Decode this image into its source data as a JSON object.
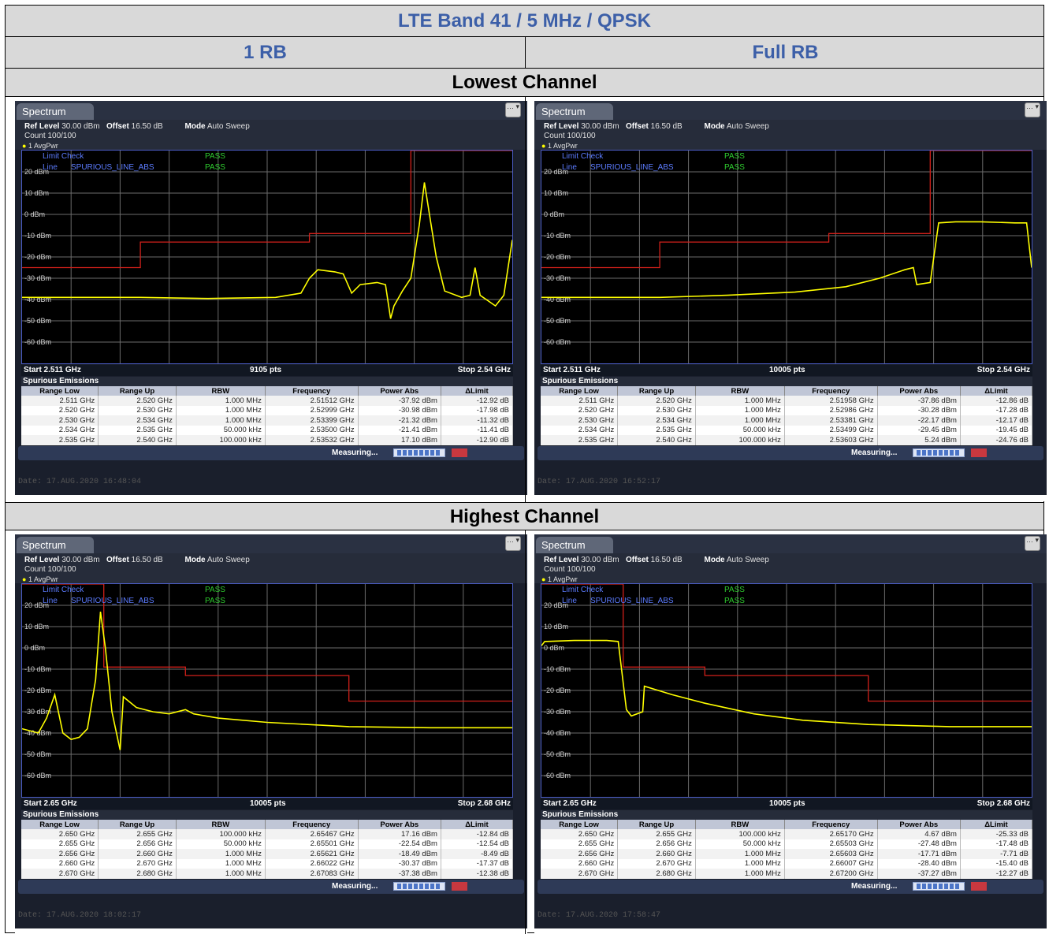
{
  "title": "LTE Band 41 / 5 MHz / QPSK",
  "col_headers": [
    "1 RB",
    "Full RB"
  ],
  "rows": [
    "Lowest Channel",
    "Highest Channel"
  ],
  "common": {
    "tab": "Spectrum",
    "ref_level_label": "Ref Level",
    "ref_level": "30.00 dBm",
    "offset_label": "Offset",
    "offset": "16.50 dB",
    "mode_label": "Mode",
    "mode": "Auto Sweep",
    "count": "Count 100/100",
    "trace": "1 AvgPwr",
    "limit_check": "Limit Check",
    "limit_line": "Line",
    "line_name": "SPURIOUS_LINE_ABS",
    "pass": "PASS",
    "spur_title": "Spurious Emissions",
    "measuring": "Measuring...",
    "table_headers": [
      "Range Low",
      "Range Up",
      "RBW",
      "Frequency",
      "Power Abs",
      "ΔLimit"
    ],
    "y_ticks": [
      "20 dBm",
      "10 dBm",
      "0 dBm",
      "-10 dBm",
      "-20 dBm",
      "-30 dBm",
      "-40 dBm",
      "-50 dBm",
      "-60 dBm"
    ]
  },
  "chart_data": [
    {
      "type": "line",
      "title": "Lowest Channel / 1 RB",
      "start": "Start 2.511 GHz",
      "stop": "Stop 2.54 GHz",
      "pts": "9105 pts",
      "date": "Date: 17.AUG.2020  16:48:04",
      "ylim": [
        -70,
        30
      ],
      "xlim": [
        2.511,
        2.54
      ],
      "limit_line": [
        [
          2.511,
          -25
        ],
        [
          2.518,
          -25
        ],
        [
          2.518,
          -13
        ],
        [
          2.528,
          -13
        ],
        [
          2.528,
          -9
        ],
        [
          2.534,
          -9
        ],
        [
          2.534,
          30
        ],
        [
          2.54,
          30
        ]
      ],
      "trace": [
        [
          2.511,
          -39
        ],
        [
          2.518,
          -39
        ],
        [
          2.522,
          -39.5
        ],
        [
          2.526,
          -39
        ],
        [
          2.5275,
          -37
        ],
        [
          2.528,
          -30
        ],
        [
          2.5285,
          -26
        ],
        [
          2.5295,
          -27
        ],
        [
          2.53,
          -28
        ],
        [
          2.5305,
          -37
        ],
        [
          2.531,
          -33
        ],
        [
          2.532,
          -32
        ],
        [
          2.5325,
          -33
        ],
        [
          2.5328,
          -49
        ],
        [
          2.533,
          -43
        ],
        [
          2.5335,
          -36
        ],
        [
          2.534,
          -30
        ],
        [
          2.5345,
          -5
        ],
        [
          2.5348,
          15
        ],
        [
          2.5351,
          0
        ],
        [
          2.5355,
          -20
        ],
        [
          2.536,
          -36
        ],
        [
          2.537,
          -39
        ],
        [
          2.5375,
          -38
        ],
        [
          2.5378,
          -25
        ],
        [
          2.5381,
          -38
        ],
        [
          2.539,
          -43
        ],
        [
          2.5395,
          -38
        ],
        [
          2.54,
          -12
        ]
      ],
      "rows": [
        [
          "2.511 GHz",
          "2.520 GHz",
          "1.000 MHz",
          "2.51512 GHz",
          "-37.92 dBm",
          "-12.92 dB"
        ],
        [
          "2.520 GHz",
          "2.530 GHz",
          "1.000 MHz",
          "2.52999 GHz",
          "-30.98 dBm",
          "-17.98 dB"
        ],
        [
          "2.530 GHz",
          "2.534 GHz",
          "1.000 MHz",
          "2.53399 GHz",
          "-21.32 dBm",
          "-11.32 dB"
        ],
        [
          "2.534 GHz",
          "2.535 GHz",
          "50.000 kHz",
          "2.53500 GHz",
          "-21.41 dBm",
          "-11.41 dB"
        ],
        [
          "2.535 GHz",
          "2.540 GHz",
          "100.000 kHz",
          "2.53532 GHz",
          "17.10 dBm",
          "-12.90 dB"
        ]
      ]
    },
    {
      "type": "line",
      "title": "Lowest Channel / Full RB",
      "start": "Start 2.511 GHz",
      "stop": "Stop 2.54 GHz",
      "pts": "10005 pts",
      "date": "Date: 17.AUG.2020  16:52:17",
      "ylim": [
        -70,
        30
      ],
      "xlim": [
        2.511,
        2.54
      ],
      "limit_line": [
        [
          2.511,
          -25
        ],
        [
          2.518,
          -25
        ],
        [
          2.518,
          -13
        ],
        [
          2.528,
          -13
        ],
        [
          2.528,
          -9
        ],
        [
          2.534,
          -9
        ],
        [
          2.534,
          30
        ],
        [
          2.54,
          30
        ]
      ],
      "trace": [
        [
          2.511,
          -39
        ],
        [
          2.518,
          -39
        ],
        [
          2.522,
          -38
        ],
        [
          2.526,
          -36.5
        ],
        [
          2.529,
          -34
        ],
        [
          2.531,
          -30
        ],
        [
          2.5325,
          -26
        ],
        [
          2.533,
          -25
        ],
        [
          2.5332,
          -33
        ],
        [
          2.534,
          -32
        ],
        [
          2.5345,
          -4
        ],
        [
          2.5355,
          -3.5
        ],
        [
          2.537,
          -3.5
        ],
        [
          2.539,
          -4
        ],
        [
          2.5397,
          -4
        ],
        [
          2.54,
          -25
        ]
      ],
      "rows": [
        [
          "2.511 GHz",
          "2.520 GHz",
          "1.000 MHz",
          "2.51958 GHz",
          "-37.86 dBm",
          "-12.86 dB"
        ],
        [
          "2.520 GHz",
          "2.530 GHz",
          "1.000 MHz",
          "2.52986 GHz",
          "-30.28 dBm",
          "-17.28 dB"
        ],
        [
          "2.530 GHz",
          "2.534 GHz",
          "1.000 MHz",
          "2.53381 GHz",
          "-22.17 dBm",
          "-12.17 dB"
        ],
        [
          "2.534 GHz",
          "2.535 GHz",
          "50.000 kHz",
          "2.53499 GHz",
          "-29.45 dBm",
          "-19.45 dB"
        ],
        [
          "2.535 GHz",
          "2.540 GHz",
          "100.000 kHz",
          "2.53603 GHz",
          "5.24 dBm",
          "-24.76 dB"
        ]
      ]
    },
    {
      "type": "line",
      "title": "Highest Channel / 1 RB",
      "start": "Start 2.65 GHz",
      "stop": "Stop 2.68 GHz",
      "pts": "10005 pts",
      "date": "Date: 17.AUG.2020  18:02:17",
      "ylim": [
        -70,
        30
      ],
      "xlim": [
        2.65,
        2.68
      ],
      "limit_line": [
        [
          2.65,
          30
        ],
        [
          2.655,
          30
        ],
        [
          2.655,
          -9
        ],
        [
          2.66,
          -9
        ],
        [
          2.66,
          -13
        ],
        [
          2.67,
          -13
        ],
        [
          2.67,
          -25
        ],
        [
          2.68,
          -25
        ]
      ],
      "trace": [
        [
          2.65,
          -38
        ],
        [
          2.651,
          -40
        ],
        [
          2.6515,
          -33
        ],
        [
          2.652,
          -22
        ],
        [
          2.6525,
          -40
        ],
        [
          2.653,
          -43
        ],
        [
          2.6535,
          -42
        ],
        [
          2.654,
          -38
        ],
        [
          2.6545,
          -15
        ],
        [
          2.6548,
          17
        ],
        [
          2.6551,
          0
        ],
        [
          2.6555,
          -30
        ],
        [
          2.656,
          -48
        ],
        [
          2.6562,
          -23
        ],
        [
          2.657,
          -28
        ],
        [
          2.658,
          -30
        ],
        [
          2.659,
          -31
        ],
        [
          2.66,
          -29
        ],
        [
          2.6605,
          -31
        ],
        [
          2.662,
          -33
        ],
        [
          2.665,
          -35
        ],
        [
          2.67,
          -37
        ],
        [
          2.675,
          -37.5
        ],
        [
          2.68,
          -37.5
        ]
      ],
      "rows": [
        [
          "2.650 GHz",
          "2.655 GHz",
          "100.000 kHz",
          "2.65467 GHz",
          "17.16 dBm",
          "-12.84 dB"
        ],
        [
          "2.655 GHz",
          "2.656 GHz",
          "50.000 kHz",
          "2.65501 GHz",
          "-22.54 dBm",
          "-12.54 dB"
        ],
        [
          "2.656 GHz",
          "2.660 GHz",
          "1.000 MHz",
          "2.65621 GHz",
          "-18.49 dBm",
          "-8.49 dB"
        ],
        [
          "2.660 GHz",
          "2.670 GHz",
          "1.000 MHz",
          "2.66022 GHz",
          "-30.37 dBm",
          "-17.37 dB"
        ],
        [
          "2.670 GHz",
          "2.680 GHz",
          "1.000 MHz",
          "2.67083 GHz",
          "-37.38 dBm",
          "-12.38 dB"
        ]
      ]
    },
    {
      "type": "line",
      "title": "Highest Channel / Full RB",
      "start": "Start 2.65 GHz",
      "stop": "Stop 2.68 GHz",
      "pts": "10005 pts",
      "date": "Date: 17.AUG.2020  17:58:47",
      "ylim": [
        -70,
        30
      ],
      "xlim": [
        2.65,
        2.68
      ],
      "limit_line": [
        [
          2.65,
          30
        ],
        [
          2.655,
          30
        ],
        [
          2.655,
          -9
        ],
        [
          2.66,
          -9
        ],
        [
          2.66,
          -13
        ],
        [
          2.67,
          -13
        ],
        [
          2.67,
          -25
        ],
        [
          2.68,
          -25
        ]
      ],
      "trace": [
        [
          2.65,
          1
        ],
        [
          2.6502,
          3
        ],
        [
          2.652,
          3.5
        ],
        [
          2.654,
          3.5
        ],
        [
          2.6547,
          3
        ],
        [
          2.6552,
          -29
        ],
        [
          2.6555,
          -32
        ],
        [
          2.6562,
          -30
        ],
        [
          2.6563,
          -18
        ],
        [
          2.658,
          -22
        ],
        [
          2.66,
          -26
        ],
        [
          2.663,
          -31
        ],
        [
          2.666,
          -34
        ],
        [
          2.67,
          -36
        ],
        [
          2.675,
          -37
        ],
        [
          2.68,
          -37
        ]
      ],
      "rows": [
        [
          "2.650 GHz",
          "2.655 GHz",
          "100.000 kHz",
          "2.65170 GHz",
          "4.67 dBm",
          "-25.33 dB"
        ],
        [
          "2.655 GHz",
          "2.656 GHz",
          "50.000 kHz",
          "2.65503 GHz",
          "-27.48 dBm",
          "-17.48 dB"
        ],
        [
          "2.656 GHz",
          "2.660 GHz",
          "1.000 MHz",
          "2.65603 GHz",
          "-17.71 dBm",
          "-7.71 dB"
        ],
        [
          "2.660 GHz",
          "2.670 GHz",
          "1.000 MHz",
          "2.66007 GHz",
          "-28.40 dBm",
          "-15.40 dB"
        ],
        [
          "2.670 GHz",
          "2.680 GHz",
          "1.000 MHz",
          "2.67200 GHz",
          "-37.27 dBm",
          "-12.27 dB"
        ]
      ]
    }
  ]
}
